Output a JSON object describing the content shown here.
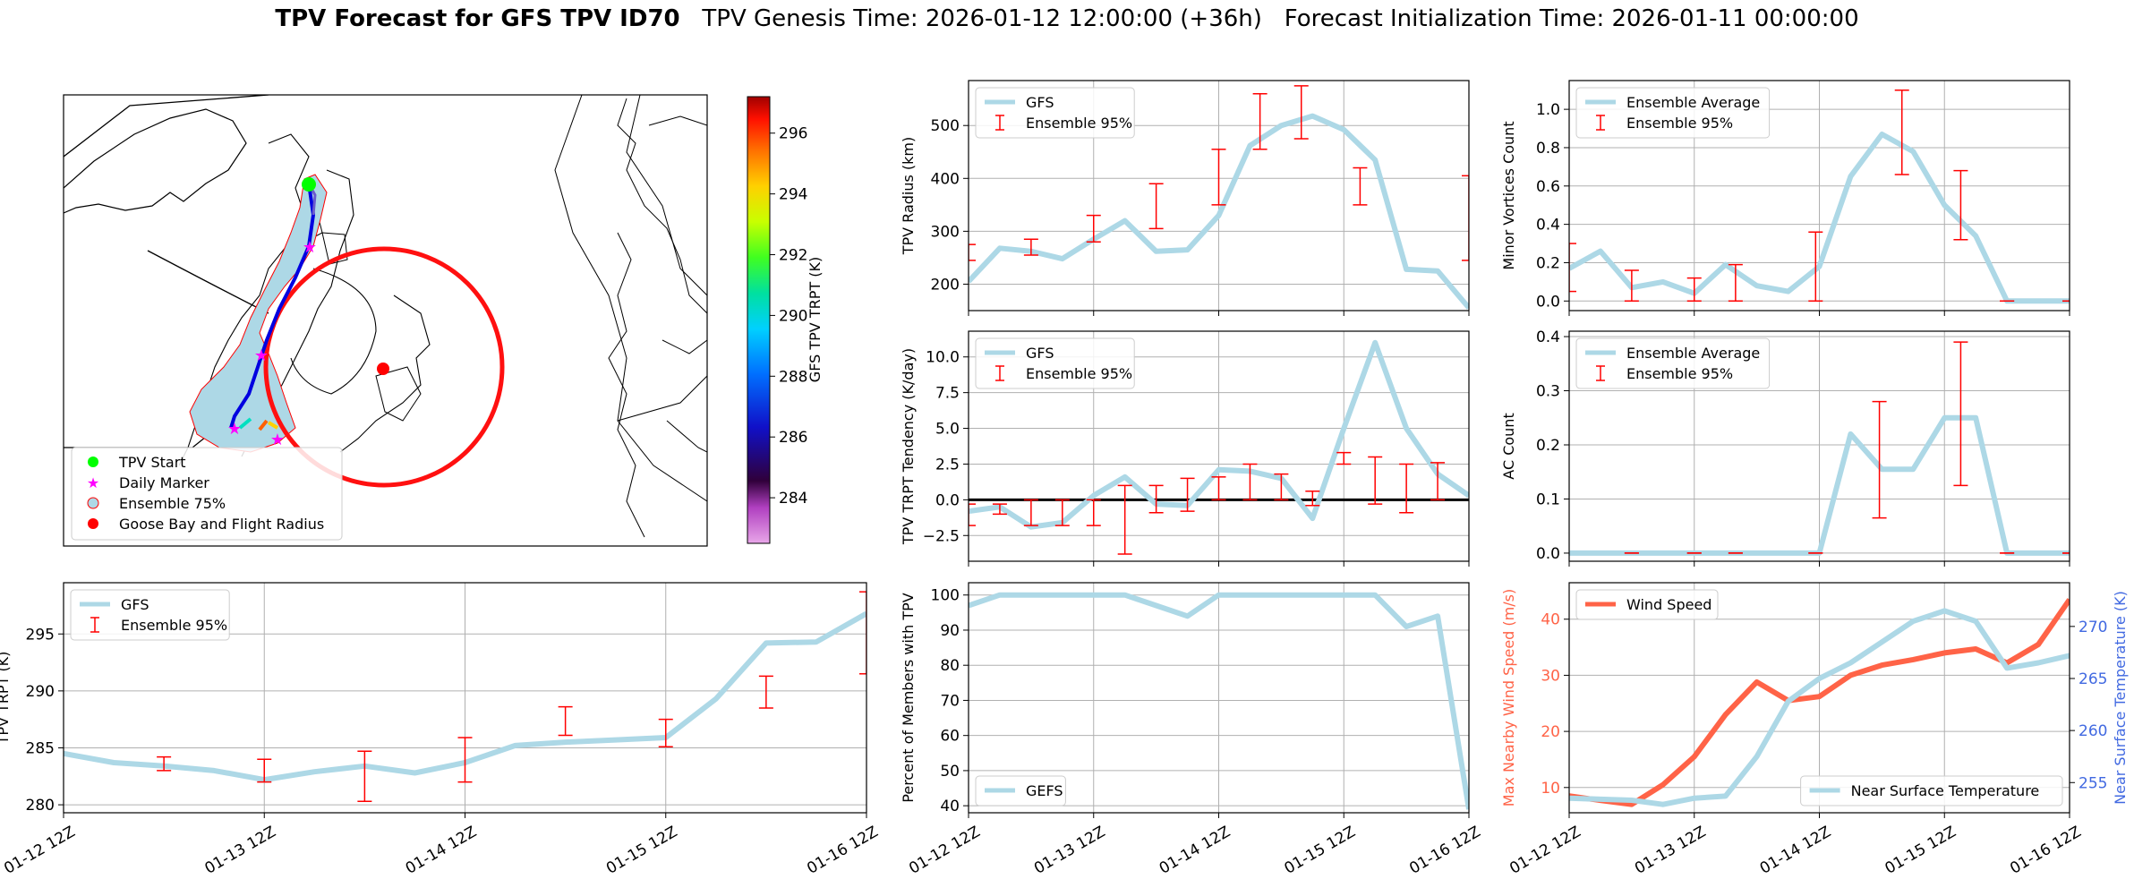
{
  "title": {
    "bold": "TPV Forecast for GFS TPV ID70",
    "genesis": "TPV Genesis Time: 2026-01-12 12:00:00 (+36h)",
    "init": "Forecast Initialization Time: 2026-01-11 00:00:00"
  },
  "colors": {
    "line": "#add8e6",
    "error": "#ff0000",
    "wind": "#ff6347",
    "temp_axis": "#4169e1",
    "wind_axis": "#ff6347",
    "grid": "#b0b0b0"
  },
  "x_ticks": [
    "01-12 12Z",
    "01-13 12Z",
    "01-14 12Z",
    "01-15 12Z",
    "01-16 12Z"
  ],
  "map": {
    "legend": [
      "TPV Start",
      "Daily Marker",
      "Ensemble 75%",
      "Goose Bay and Flight Radius"
    ],
    "colorbar_label": "GFS TPV TRPT (K)",
    "colorbar_ticks": [
      "284",
      "286",
      "288",
      "290",
      "292",
      "294",
      "296"
    ],
    "colorbar_range": [
      282.5,
      297.2
    ]
  },
  "chart_data": [
    {
      "id": "radius",
      "type": "line",
      "ylabel": "TPV Radius (km)",
      "ylim": [
        150,
        585
      ],
      "yticks": [
        200,
        300,
        400,
        500
      ],
      "legend": [
        "GFS",
        "Ensemble 95%"
      ],
      "x": [
        0,
        0.25,
        0.5,
        0.75,
        1,
        1.25,
        1.5,
        1.75,
        2,
        2.25,
        2.5,
        2.75,
        3,
        3.25,
        3.5,
        3.75,
        4
      ],
      "values": [
        205,
        268,
        262,
        248,
        285,
        320,
        262,
        265,
        330,
        462,
        500,
        518,
        492,
        435,
        228,
        225,
        155
      ],
      "errors": [
        [
          0,
          245,
          275
        ],
        [
          0.5,
          255,
          285
        ],
        [
          1,
          280,
          330
        ],
        [
          1.5,
          305,
          390
        ],
        [
          2,
          350,
          455
        ],
        [
          2.33,
          455,
          560
        ],
        [
          2.66,
          475,
          575
        ],
        [
          3.13,
          350,
          420
        ],
        [
          4,
          245,
          405
        ]
      ]
    },
    {
      "id": "minor",
      "type": "line",
      "ylabel": "Minor Vortices Count",
      "ylim": [
        -0.05,
        1.15
      ],
      "yticks": [
        0.0,
        0.2,
        0.4,
        0.6,
        0.8,
        1.0
      ],
      "legend": [
        "Ensemble Average",
        "Ensemble 95%"
      ],
      "x": [
        0,
        0.25,
        0.5,
        0.75,
        1,
        1.25,
        1.5,
        1.75,
        2,
        2.25,
        2.5,
        2.75,
        3,
        3.25,
        3.5,
        3.75,
        4
      ],
      "values": [
        0.17,
        0.26,
        0.07,
        0.1,
        0.04,
        0.19,
        0.08,
        0.05,
        0.18,
        0.65,
        0.87,
        0.78,
        0.5,
        0.34,
        0.0,
        0.0,
        0.0
      ],
      "errors": [
        [
          0,
          0.05,
          0.3
        ],
        [
          0.5,
          0.0,
          0.16
        ],
        [
          1,
          0.0,
          0.12
        ],
        [
          1.33,
          0.0,
          0.19
        ],
        [
          1.97,
          0.0,
          0.36
        ],
        [
          2.66,
          0.66,
          1.1
        ],
        [
          3.13,
          0.32,
          0.68
        ],
        [
          3.5,
          0.0,
          0.0
        ],
        [
          4,
          0.0,
          0.0
        ]
      ]
    },
    {
      "id": "tendency",
      "type": "line",
      "ylabel": "TPV TRPT Tendency (K/day)",
      "ylim": [
        -4.3,
        11.8
      ],
      "yticks": [
        -2.5,
        0.0,
        2.5,
        5.0,
        7.5,
        10.0
      ],
      "legend": [
        "GFS",
        "Ensemble 95%"
      ],
      "zero_line": true,
      "x": [
        0,
        0.25,
        0.5,
        0.75,
        1,
        1.25,
        1.5,
        1.75,
        2,
        2.25,
        2.5,
        2.75,
        3,
        3.25,
        3.5,
        3.75,
        4
      ],
      "values": [
        -0.8,
        -0.5,
        -1.9,
        -1.6,
        0.3,
        1.6,
        -0.3,
        -0.4,
        2.1,
        2.0,
        1.5,
        -1.3,
        5.0,
        11.0,
        5.0,
        1.8,
        0.3
      ],
      "errors": [
        [
          0,
          -1.8,
          -0.3
        ],
        [
          0.25,
          -1.0,
          -0.3
        ],
        [
          0.5,
          -1.8,
          0.0
        ],
        [
          0.75,
          -1.8,
          0.0
        ],
        [
          1,
          -1.8,
          0.0
        ],
        [
          1.25,
          -3.8,
          1.0
        ],
        [
          1.5,
          -0.9,
          1.0
        ],
        [
          1.75,
          -0.8,
          1.5
        ],
        [
          2,
          0.0,
          1.6
        ],
        [
          2.25,
          0.0,
          2.5
        ],
        [
          2.5,
          0.0,
          1.8
        ],
        [
          2.75,
          -0.4,
          0.6
        ],
        [
          3,
          2.5,
          3.3
        ],
        [
          3.25,
          -0.3,
          3.0
        ],
        [
          3.5,
          -0.9,
          2.5
        ],
        [
          3.75,
          0.0,
          2.6
        ]
      ]
    },
    {
      "id": "ac",
      "type": "line",
      "ylabel": "AC Count",
      "ylim": [
        -0.015,
        0.41
      ],
      "yticks": [
        0.0,
        0.1,
        0.2,
        0.3,
        0.4
      ],
      "legend": [
        "Ensemble Average",
        "Ensemble 95%"
      ],
      "x": [
        0,
        0.25,
        0.5,
        0.75,
        1,
        1.25,
        1.5,
        1.75,
        2,
        2.25,
        2.5,
        2.75,
        3,
        3.25,
        3.5,
        3.75,
        4
      ],
      "values": [
        0.0,
        0.0,
        0.0,
        0.0,
        0.0,
        0.0,
        0.0,
        0.0,
        0.0,
        0.22,
        0.155,
        0.155,
        0.25,
        0.25,
        0.0,
        0.0,
        0.0
      ],
      "errors": [
        [
          0.5,
          0.0,
          0.0
        ],
        [
          1,
          0.0,
          0.0
        ],
        [
          1.33,
          0.0,
          0.0
        ],
        [
          1.97,
          0.0,
          0.0
        ],
        [
          2.48,
          0.065,
          0.28
        ],
        [
          3.13,
          0.125,
          0.39
        ],
        [
          3.5,
          0.0,
          0.0
        ],
        [
          4,
          0.0,
          0.0
        ]
      ]
    },
    {
      "id": "trpt",
      "type": "line",
      "ylabel": "TPV TRPT (K)",
      "ylim": [
        279.3,
        299.5
      ],
      "yticks": [
        280,
        285,
        290,
        295
      ],
      "legend": [
        "GFS",
        "Ensemble 95%"
      ],
      "x": [
        0,
        0.25,
        0.5,
        0.75,
        1,
        1.25,
        1.5,
        1.75,
        2,
        2.25,
        2.5,
        2.75,
        3,
        3.25,
        3.5,
        3.75,
        4
      ],
      "values": [
        284.5,
        283.7,
        283.4,
        283.0,
        282.2,
        282.9,
        283.4,
        282.8,
        283.7,
        285.2,
        285.5,
        285.7,
        285.9,
        289.3,
        294.2,
        294.3,
        296.8
      ],
      "errors": [
        [
          0.5,
          283.0,
          284.2
        ],
        [
          1,
          282.0,
          284.0
        ],
        [
          1.5,
          280.3,
          284.7
        ],
        [
          2,
          282.0,
          285.9
        ],
        [
          2.5,
          286.1,
          288.6
        ],
        [
          3,
          285.1,
          287.5
        ],
        [
          3.5,
          288.5,
          291.3
        ],
        [
          4,
          291.5,
          298.7
        ]
      ]
    },
    {
      "id": "members",
      "type": "line",
      "ylabel": "Percent of Members with TPV",
      "ylim": [
        38,
        103.5
      ],
      "yticks": [
        40,
        50,
        60,
        70,
        80,
        90,
        100
      ],
      "legend": [
        "GEFS"
      ],
      "x": [
        0,
        0.25,
        0.5,
        0.75,
        1,
        1.25,
        1.5,
        1.75,
        2,
        2.25,
        2.5,
        2.75,
        3,
        3.25,
        3.5,
        3.75,
        4
      ],
      "values": [
        97,
        100,
        100,
        100,
        100,
        100,
        97,
        94,
        100,
        100,
        100,
        100,
        100,
        100,
        91,
        94,
        39
      ]
    },
    {
      "id": "wind_temp",
      "type": "line",
      "ylabel": "Max Nearby Wind Speed (m/s)",
      "ylabel_right": "Near Surface Temperature (K)",
      "ylim": [
        5.5,
        46.5
      ],
      "yticks": [
        10,
        20,
        30,
        40
      ],
      "ylim_right": [
        252.1,
        274.2
      ],
      "yticks_right": [
        255,
        260,
        265,
        270
      ],
      "legend": [
        "Wind Speed"
      ],
      "legend_right": [
        "Near Surface Temperature"
      ],
      "x": [
        0,
        0.25,
        0.5,
        0.75,
        1,
        1.25,
        1.5,
        1.75,
        2,
        2.25,
        2.5,
        2.75,
        3,
        3.25,
        3.5,
        3.75,
        4
      ],
      "values": [
        8.5,
        7.7,
        7.0,
        10.5,
        15.5,
        23.0,
        28.8,
        25.5,
        26.2,
        30.0,
        31.8,
        32.8,
        34.0,
        34.7,
        32.2,
        35.5,
        43.5
      ],
      "values_right": [
        253.5,
        253.4,
        253.3,
        252.9,
        253.5,
        253.7,
        257.5,
        262.8,
        265.0,
        266.5,
        268.5,
        270.5,
        271.5,
        270.5,
        266.0,
        266.5,
        267.2
      ]
    }
  ]
}
